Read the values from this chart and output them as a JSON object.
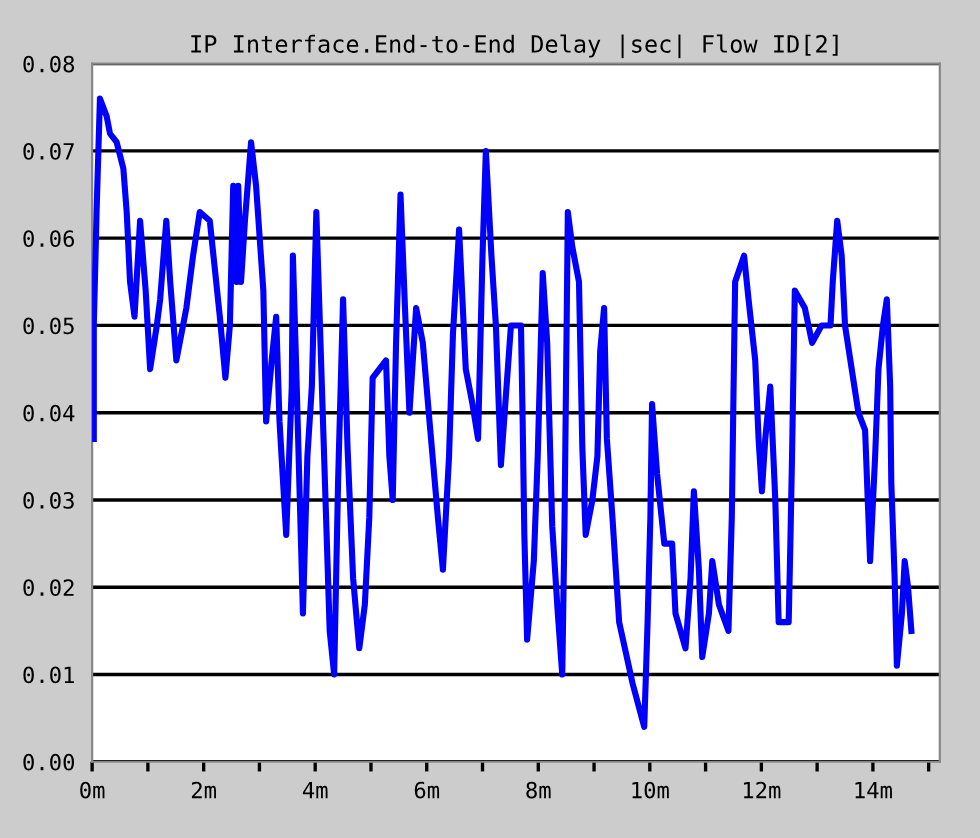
{
  "chart_data": {
    "type": "line",
    "title": "IP Interface.End-to-End Delay |sec| Flow ID[2]",
    "xlim": [
      0,
      15.2
    ],
    "ylim": [
      0,
      0.08
    ],
    "xticks": [
      {
        "value": 0,
        "label": "0m"
      },
      {
        "value": 1,
        "label": null
      },
      {
        "value": 2,
        "label": "2m"
      },
      {
        "value": 3,
        "label": null
      },
      {
        "value": 4,
        "label": "4m"
      },
      {
        "value": 5,
        "label": null
      },
      {
        "value": 6,
        "label": "6m"
      },
      {
        "value": 7,
        "label": null
      },
      {
        "value": 8,
        "label": "8m"
      },
      {
        "value": 9,
        "label": null
      },
      {
        "value": 10,
        "label": "10m"
      },
      {
        "value": 11,
        "label": null
      },
      {
        "value": 12,
        "label": "12m"
      },
      {
        "value": 13,
        "label": null
      },
      {
        "value": 14,
        "label": "14m"
      },
      {
        "value": 15,
        "label": null
      }
    ],
    "yticks": [
      {
        "value": 0,
        "label": "0.00"
      },
      {
        "value": 0.01,
        "label": "0.01"
      },
      {
        "value": 0.02,
        "label": "0.02"
      },
      {
        "value": 0.03,
        "label": "0.03"
      },
      {
        "value": 0.04,
        "label": "0.04"
      },
      {
        "value": 0.05,
        "label": "0.05"
      },
      {
        "value": 0.06,
        "label": "0.06"
      },
      {
        "value": 0.07,
        "label": "0.07"
      },
      {
        "value": 0.08,
        "label": "0.08"
      }
    ],
    "grid": "y",
    "marker": "none",
    "line_style": "solid",
    "series": [
      {
        "color": "#0000ff",
        "x": [
          0.03,
          0.03,
          0.08,
          0.14,
          0.26,
          0.32,
          0.44,
          0.56,
          0.62,
          0.68,
          0.76,
          0.86,
          0.96,
          1.04,
          1.16,
          1.22,
          1.33,
          1.4,
          1.51,
          1.69,
          1.81,
          1.93,
          2.11,
          2.29,
          2.39,
          2.47,
          2.53,
          2.59,
          2.62,
          2.67,
          2.74,
          2.85,
          2.94,
          3.07,
          3.12,
          3.22,
          3.3,
          3.36,
          3.48,
          3.58,
          3.6,
          3.66,
          3.78,
          3.86,
          3.94,
          4.02,
          4.08,
          4.18,
          4.26,
          4.34,
          4.41,
          4.5,
          4.58,
          4.68,
          4.79,
          4.89,
          4.97,
          5.03,
          5.15,
          5.27,
          5.33,
          5.39,
          5.45,
          5.53,
          5.61,
          5.69,
          5.81,
          5.93,
          6.05,
          6.2,
          6.29,
          6.4,
          6.47,
          6.58,
          6.7,
          6.82,
          6.92,
          7.0,
          7.06,
          7.16,
          7.24,
          7.33,
          7.42,
          7.51,
          7.69,
          7.72,
          7.75,
          7.8,
          7.92,
          7.99,
          8.08,
          8.16,
          8.25,
          8.35,
          8.43,
          8.47,
          8.53,
          8.61,
          8.73,
          8.79,
          8.85,
          8.97,
          9.06,
          9.11,
          9.18,
          9.23,
          9.33,
          9.45,
          9.69,
          9.9,
          9.96,
          10.01,
          10.04,
          10.13,
          10.26,
          10.4,
          10.46,
          10.64,
          10.73,
          10.79,
          10.88,
          10.94,
          11.06,
          11.12,
          11.24,
          11.41,
          11.47,
          11.5,
          11.53,
          11.69,
          11.77,
          11.89,
          11.95,
          12.01,
          12.07,
          12.16,
          12.25,
          12.31,
          12.49,
          12.52,
          12.55,
          12.6,
          12.78,
          12.91,
          13.08,
          13.24,
          13.28,
          13.36,
          13.44,
          13.5,
          13.62,
          13.74,
          13.86,
          13.95,
          14.04,
          14.1,
          14.18,
          14.25,
          14.31,
          14.33,
          14.39,
          14.43,
          14.52,
          14.57,
          14.63,
          14.69
        ],
        "values": [
          0.037,
          0.05,
          0.063,
          0.076,
          0.074,
          0.072,
          0.071,
          0.068,
          0.063,
          0.055,
          0.051,
          0.062,
          0.054,
          0.045,
          0.05,
          0.053,
          0.062,
          0.055,
          0.046,
          0.052,
          0.058,
          0.063,
          0.062,
          0.051,
          0.044,
          0.05,
          0.066,
          0.055,
          0.066,
          0.055,
          0.062,
          0.071,
          0.066,
          0.054,
          0.039,
          0.046,
          0.051,
          0.039,
          0.026,
          0.043,
          0.058,
          0.045,
          0.017,
          0.035,
          0.043,
          0.063,
          0.051,
          0.031,
          0.015,
          0.01,
          0.032,
          0.053,
          0.036,
          0.021,
          0.013,
          0.018,
          0.028,
          0.044,
          0.045,
          0.046,
          0.035,
          0.03,
          0.048,
          0.065,
          0.052,
          0.04,
          0.052,
          0.048,
          0.039,
          0.028,
          0.022,
          0.035,
          0.049,
          0.061,
          0.045,
          0.041,
          0.037,
          0.058,
          0.07,
          0.058,
          0.05,
          0.034,
          0.042,
          0.05,
          0.05,
          0.039,
          0.026,
          0.014,
          0.023,
          0.035,
          0.056,
          0.048,
          0.027,
          0.017,
          0.01,
          0.027,
          0.063,
          0.059,
          0.055,
          0.036,
          0.026,
          0.03,
          0.035,
          0.047,
          0.052,
          0.037,
          0.028,
          0.016,
          0.009,
          0.004,
          0.016,
          0.028,
          0.041,
          0.033,
          0.025,
          0.025,
          0.017,
          0.013,
          0.021,
          0.031,
          0.022,
          0.012,
          0.017,
          0.023,
          0.018,
          0.015,
          0.028,
          0.042,
          0.055,
          0.058,
          0.053,
          0.046,
          0.037,
          0.031,
          0.037,
          0.043,
          0.03,
          0.016,
          0.016,
          0.025,
          0.035,
          0.054,
          0.052,
          0.048,
          0.05,
          0.05,
          0.055,
          0.062,
          0.058,
          0.05,
          0.045,
          0.04,
          0.038,
          0.023,
          0.035,
          0.045,
          0.05,
          0.053,
          0.043,
          0.032,
          0.021,
          0.011,
          0.017,
          0.023,
          0.02,
          0.015
        ]
      }
    ]
  }
}
